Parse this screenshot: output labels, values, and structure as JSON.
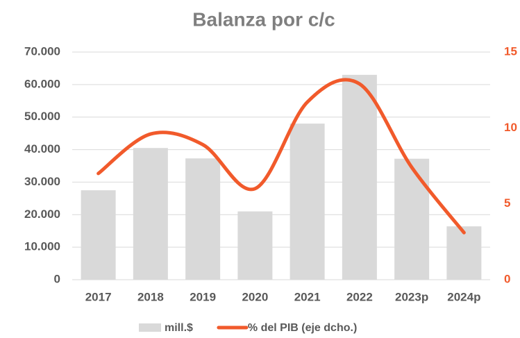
{
  "chart_data": {
    "type": "bar",
    "title": "Balanza por c/c",
    "categories": [
      "2017",
      "2018",
      "2019",
      "2020",
      "2021",
      "2022",
      "2023p",
      "2024p"
    ],
    "series": [
      {
        "name": "mill.$",
        "type": "bar",
        "color": "#d9d9d9",
        "values": [
          27500,
          40500,
          37300,
          21000,
          48000,
          63000,
          37200,
          16400
        ]
      },
      {
        "name": "% del PIB (eje dcho.)",
        "type": "line",
        "axis": "y2",
        "color": "#f15a2b",
        "values": [
          7.0,
          9.6,
          8.9,
          6.0,
          11.7,
          12.9,
          7.4,
          3.1
        ]
      }
    ],
    "ylim": [
      0,
      70000
    ],
    "yticks": [
      0,
      {
        "value": 10000,
        "label": "10.000"
      },
      {
        "value": 20000,
        "label": "20.000"
      },
      {
        "value": 30000,
        "label": "30.000"
      },
      {
        "value": 40000,
        "label": "40.000"
      },
      {
        "value": 50000,
        "label": "50.000"
      },
      {
        "value": 60000,
        "label": "60.000"
      },
      {
        "value": 70000,
        "label": "70.000"
      }
    ],
    "y2lim": [
      0,
      15
    ],
    "y2ticks": [
      0,
      5,
      10,
      15
    ],
    "grid": true,
    "legend": "bottom"
  }
}
